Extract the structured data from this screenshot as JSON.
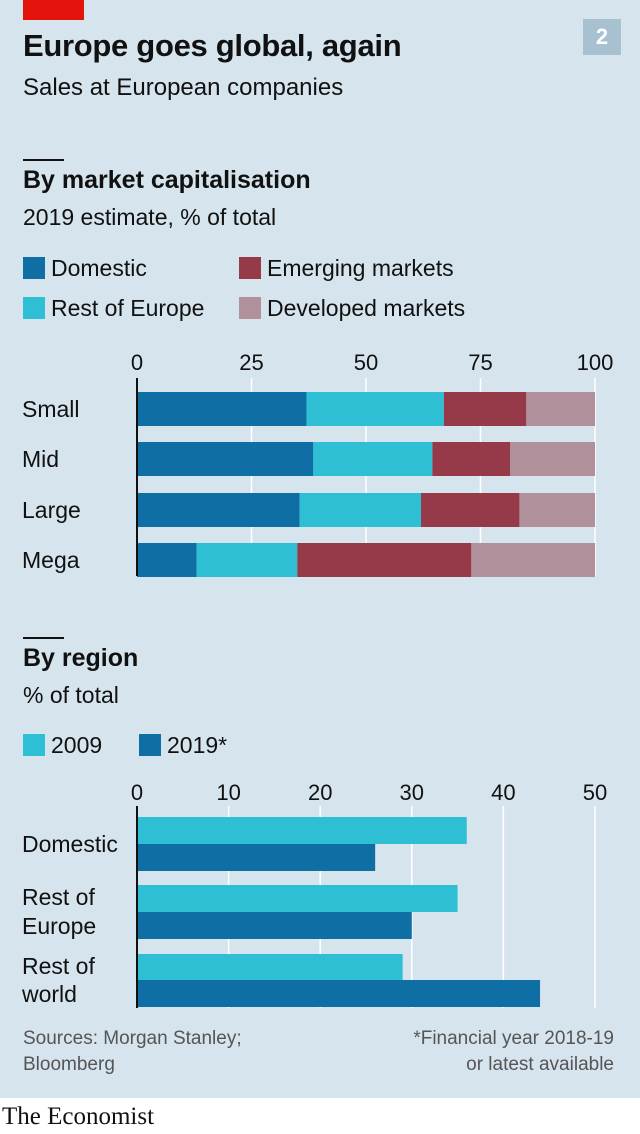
{
  "header": {
    "title": "Europe goes global, again",
    "subtitle": "Sales at European companies",
    "chart_number": "2"
  },
  "sections": {
    "cap": {
      "title": "By market capitalisation",
      "subtitle": "2019 estimate, % of total"
    },
    "region": {
      "title": "By region",
      "subtitle": "% of total"
    }
  },
  "legend": {
    "cap": [
      "Domestic",
      "Rest of Europe",
      "Emerging markets",
      "Developed markets"
    ],
    "region": [
      "2009",
      "2019*"
    ]
  },
  "colors": {
    "domestic": "#0f6ea3",
    "rest_of_europe": "#2fbfd5",
    "emerging": "#963a49",
    "developed": "#b0909a",
    "y2009": "#2fbfd5",
    "y2019": "#0f6ea3",
    "background": "#d5e4ed",
    "brand_red": "#e3120b"
  },
  "footer": {
    "sources": [
      "Sources: Morgan Stanley;",
      "Bloomberg"
    ],
    "note": [
      "*Financial year 2018-19",
      "or latest available"
    ],
    "brand": "The Economist"
  },
  "chart_data": [
    {
      "type": "bar",
      "orientation": "horizontal",
      "stacked": true,
      "title": "By market capitalisation",
      "subtitle": "2019 estimate, % of total",
      "categories": [
        "Small",
        "Mid",
        "Large",
        "Mega"
      ],
      "series": [
        {
          "name": "Domestic",
          "values": [
            37,
            38.5,
            35.5,
            13
          ]
        },
        {
          "name": "Rest of Europe",
          "values": [
            30,
            26,
            26.5,
            22
          ]
        },
        {
          "name": "Emerging markets",
          "values": [
            18,
            17,
            21.5,
            38
          ]
        },
        {
          "name": "Developed markets",
          "values": [
            15,
            18.5,
            16.5,
            27
          ]
        }
      ],
      "xlim": [
        0,
        100
      ],
      "xticks": [
        0,
        25,
        50,
        75,
        100
      ],
      "grid": true,
      "legend_position": "top"
    },
    {
      "type": "bar",
      "orientation": "horizontal",
      "stacked": false,
      "title": "By region",
      "subtitle": "% of total",
      "categories": [
        [
          "Domestic"
        ],
        [
          "Rest of",
          "Europe"
        ],
        [
          "Rest of",
          "world"
        ]
      ],
      "series": [
        {
          "name": "2009",
          "values": [
            36,
            35,
            29
          ]
        },
        {
          "name": "2019*",
          "values": [
            26,
            30,
            44
          ]
        }
      ],
      "xlim": [
        0,
        50
      ],
      "xticks": [
        0,
        10,
        20,
        30,
        40,
        50
      ],
      "grid": true,
      "legend_position": "top"
    }
  ]
}
